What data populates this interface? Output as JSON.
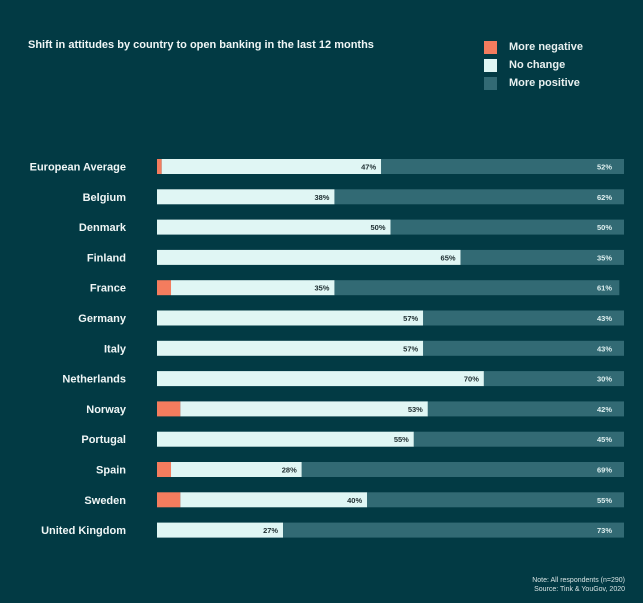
{
  "chart_data": {
    "type": "bar",
    "stacked": true,
    "orientation": "horizontal",
    "title": "Shift in attitudes by country to open banking in the last 12 months",
    "categories": [
      "European Average",
      "Belgium",
      "Denmark",
      "Finland",
      "France",
      "Germany",
      "Italy",
      "Netherlands",
      "Norway",
      "Portugal",
      "Spain",
      "Sweden",
      "United Kingdom"
    ],
    "series": [
      {
        "name": "More negative",
        "color": "#f47c5e",
        "values": [
          1,
          0,
          0,
          0,
          3,
          0,
          0,
          0,
          5,
          0,
          3,
          5,
          0
        ]
      },
      {
        "name": "No change",
        "color": "#e0f6f4",
        "values": [
          47,
          38,
          50,
          65,
          35,
          57,
          57,
          70,
          53,
          55,
          28,
          40,
          27
        ]
      },
      {
        "name": "More positive",
        "color": "#326a74",
        "values": [
          52,
          62,
          50,
          35,
          61,
          43,
          43,
          30,
          42,
          45,
          69,
          55,
          73
        ]
      }
    ],
    "xlim": [
      0,
      100
    ],
    "legend": "top-right",
    "value_format": "%"
  },
  "note": "Note: All respondents (n=290)",
  "source": "Source: Tink & YouGov, 2020"
}
